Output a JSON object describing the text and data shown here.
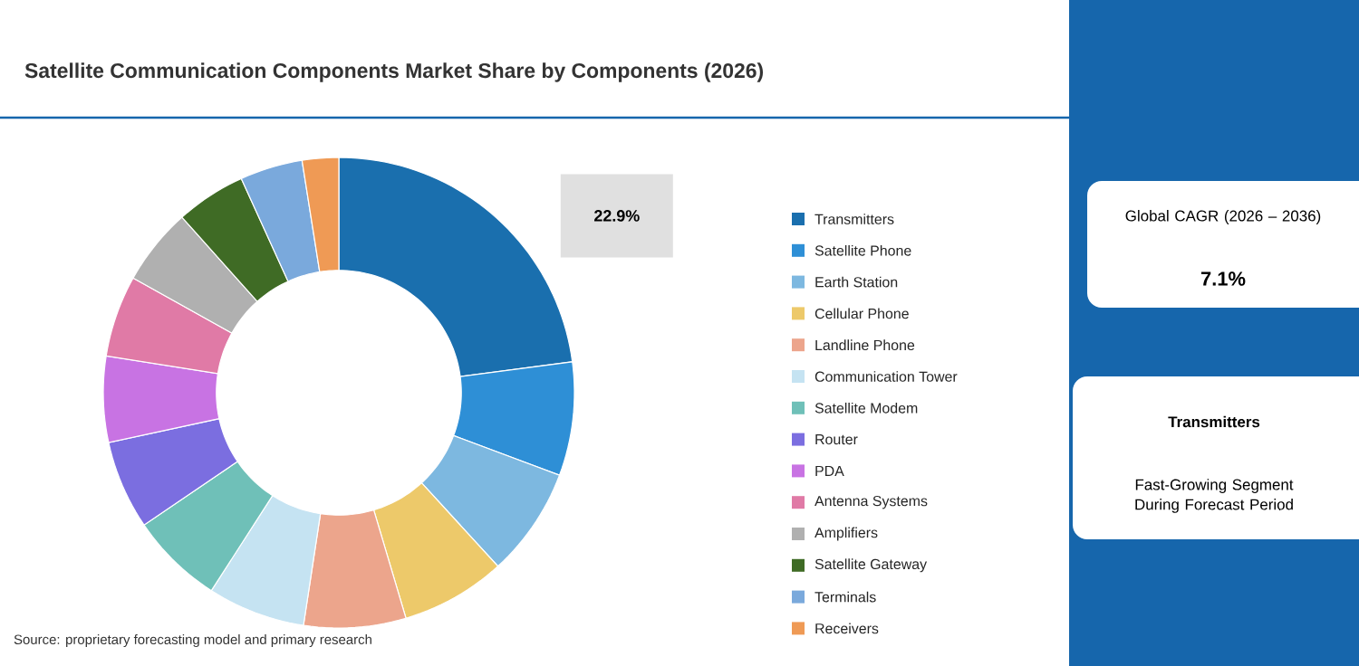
{
  "chart_data": {
    "type": "donut",
    "title": "Satellite Communication Components Market Share by Components (2026)",
    "categories": [
      "Transmitters",
      "Satellite Phone",
      "Earth Station",
      "Cellular Phone",
      "Landline Phone",
      "Communication Tower",
      "Satellite Modem",
      "Router",
      "PDA",
      "Antenna Systems",
      "Amplifiers",
      "Satellite Gateway",
      "Terminals",
      "Receivers"
    ],
    "values": [
      22.9,
      7.8,
      7.5,
      7.2,
      7.0,
      6.7,
      6.4,
      6.1,
      5.9,
      5.6,
      5.3,
      4.8,
      4.3,
      2.5
    ],
    "colors": [
      "#1a6fae",
      "#2e8fd6",
      "#7db8e0",
      "#edc96a",
      "#eca58c",
      "#c5e3f2",
      "#6fc0b8",
      "#7b6ee0",
      "#c873e3",
      "#e07aa6",
      "#b0b0b0",
      "#3f6b25",
      "#7aa9dc",
      "#ef9a55"
    ],
    "value_labels": [
      "22.9%",
      null,
      null,
      null,
      null,
      null,
      null,
      null,
      null,
      null,
      null,
      null,
      null,
      null
    ],
    "legend": "right",
    "annotations": [
      "Global CAGR (2026 – 2036)",
      "7.1%",
      "Transmitters",
      "Fast-Growing Segment During Forecast Period",
      "Source: proprietary forecasting model and primary research"
    ]
  }
}
